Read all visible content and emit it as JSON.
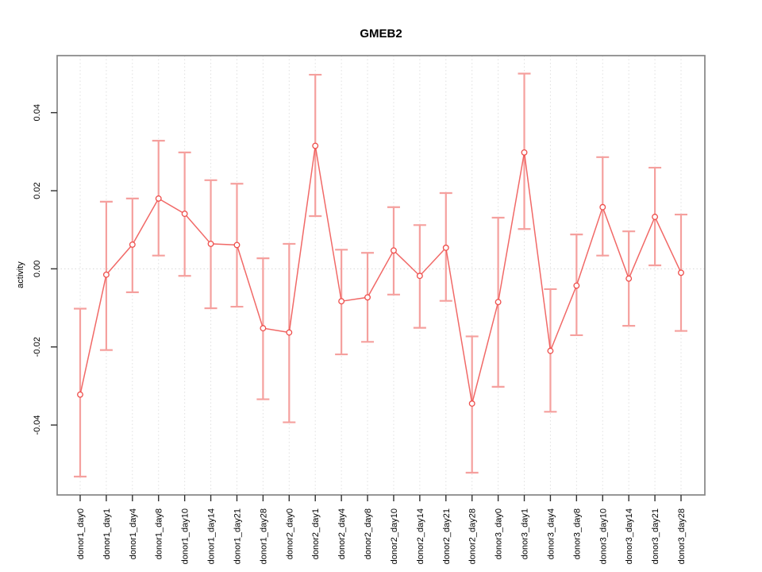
{
  "window": {
    "background": "#ffffff"
  },
  "chart_data": {
    "type": "line",
    "title": "GMEB2",
    "xlabel": "",
    "ylabel": "activity",
    "categories": [
      "donor1_day0",
      "donor1_day1",
      "donor1_day4",
      "donor1_day8",
      "donor1_day10",
      "donor1_day14",
      "donor1_day21",
      "donor1_day28",
      "donor2_day0",
      "donor2_day1",
      "donor2_day4",
      "donor2_day8",
      "donor2_day10",
      "donor2_day14",
      "donor2_day21",
      "donor2_day28",
      "donor3_day0",
      "donor3_day1",
      "donor3_day4",
      "donor3_day8",
      "donor3_day10",
      "donor3_day14",
      "donor3_day21",
      "donor3_day28"
    ],
    "series": [
      {
        "name": "GMEB2 activity",
        "values": [
          -0.0322,
          -0.0015,
          0.0062,
          0.018,
          0.0141,
          0.0064,
          0.0061,
          -0.0152,
          -0.0163,
          0.0315,
          -0.0083,
          -0.0073,
          0.0047,
          -0.0018,
          0.0054,
          -0.0345,
          -0.0085,
          0.0298,
          -0.021,
          -0.0043,
          0.0158,
          -0.0025,
          0.0133,
          -0.001
        ],
        "error_lower": [
          -0.0532,
          -0.0208,
          -0.006,
          0.0034,
          -0.0018,
          -0.0101,
          -0.0097,
          -0.0334,
          -0.0393,
          0.0135,
          -0.0219,
          -0.0187,
          -0.0066,
          -0.0151,
          -0.0082,
          -0.0522,
          -0.0302,
          0.0102,
          -0.0366,
          -0.017,
          0.0034,
          -0.0146,
          0.0009,
          -0.0159
        ],
        "error_upper": [
          -0.0102,
          0.0172,
          0.018,
          0.0328,
          0.0298,
          0.0227,
          0.0218,
          0.0027,
          0.0064,
          0.0497,
          0.0049,
          0.0041,
          0.0158,
          0.0112,
          0.0194,
          -0.0173,
          0.0131,
          0.05,
          -0.0052,
          0.0088,
          0.0286,
          0.0096,
          0.0259,
          0.0139
        ]
      }
    ],
    "ylim": [
      -0.0579,
      0.0546
    ],
    "yticks": [
      -0.04,
      -0.02,
      0,
      0.02,
      0.04
    ],
    "grid": {
      "vertical_dotted_per_category": true,
      "zero_line_dotted": true
    },
    "legend_position": "none",
    "marker": "open-circle",
    "colors": {
      "series": "#ee4f4c",
      "error_bar": "#f5a09e",
      "grid_line": "#e0e0e0",
      "zero_line": "#d8d8d8",
      "plot_border": "#858585",
      "tick": "#303030",
      "text": "#000000",
      "background": "#ffffff"
    }
  }
}
